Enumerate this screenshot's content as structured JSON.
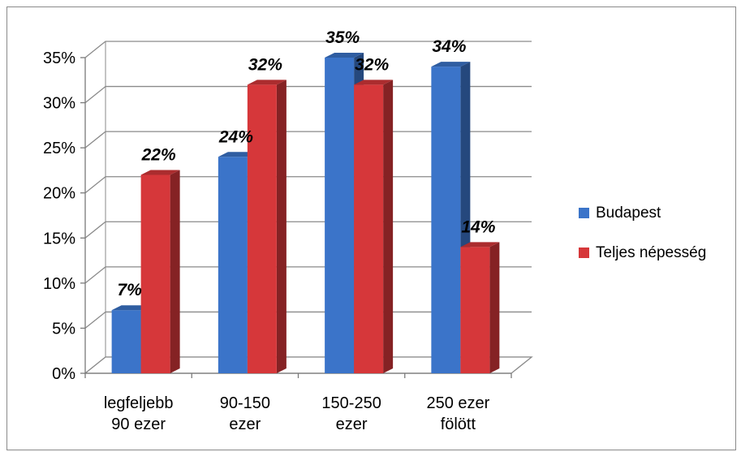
{
  "chart_data": {
    "type": "bar",
    "categories": [
      [
        "legfeljebb",
        "90 ezer"
      ],
      [
        "90-150",
        "ezer"
      ],
      [
        "150-250",
        "ezer"
      ],
      [
        "250 ezer",
        "fölött"
      ]
    ],
    "series": [
      {
        "name": "Budapest",
        "values": [
          7,
          24,
          35,
          34
        ],
        "labels": [
          "7%",
          "24%",
          "35%",
          "34%"
        ],
        "color": "#3b74c9"
      },
      {
        "name": "Teljes népesség",
        "values": [
          22,
          32,
          32,
          14
        ],
        "labels": [
          "22%",
          "32%",
          "32%",
          "14%"
        ],
        "color": "#d6373a"
      }
    ],
    "y_ticks": [
      "0%",
      "5%",
      "10%",
      "15%",
      "20%",
      "25%",
      "30%",
      "35%"
    ],
    "ylim": [
      0,
      35
    ],
    "grid": true,
    "legend_position": "right",
    "three_d": true
  }
}
